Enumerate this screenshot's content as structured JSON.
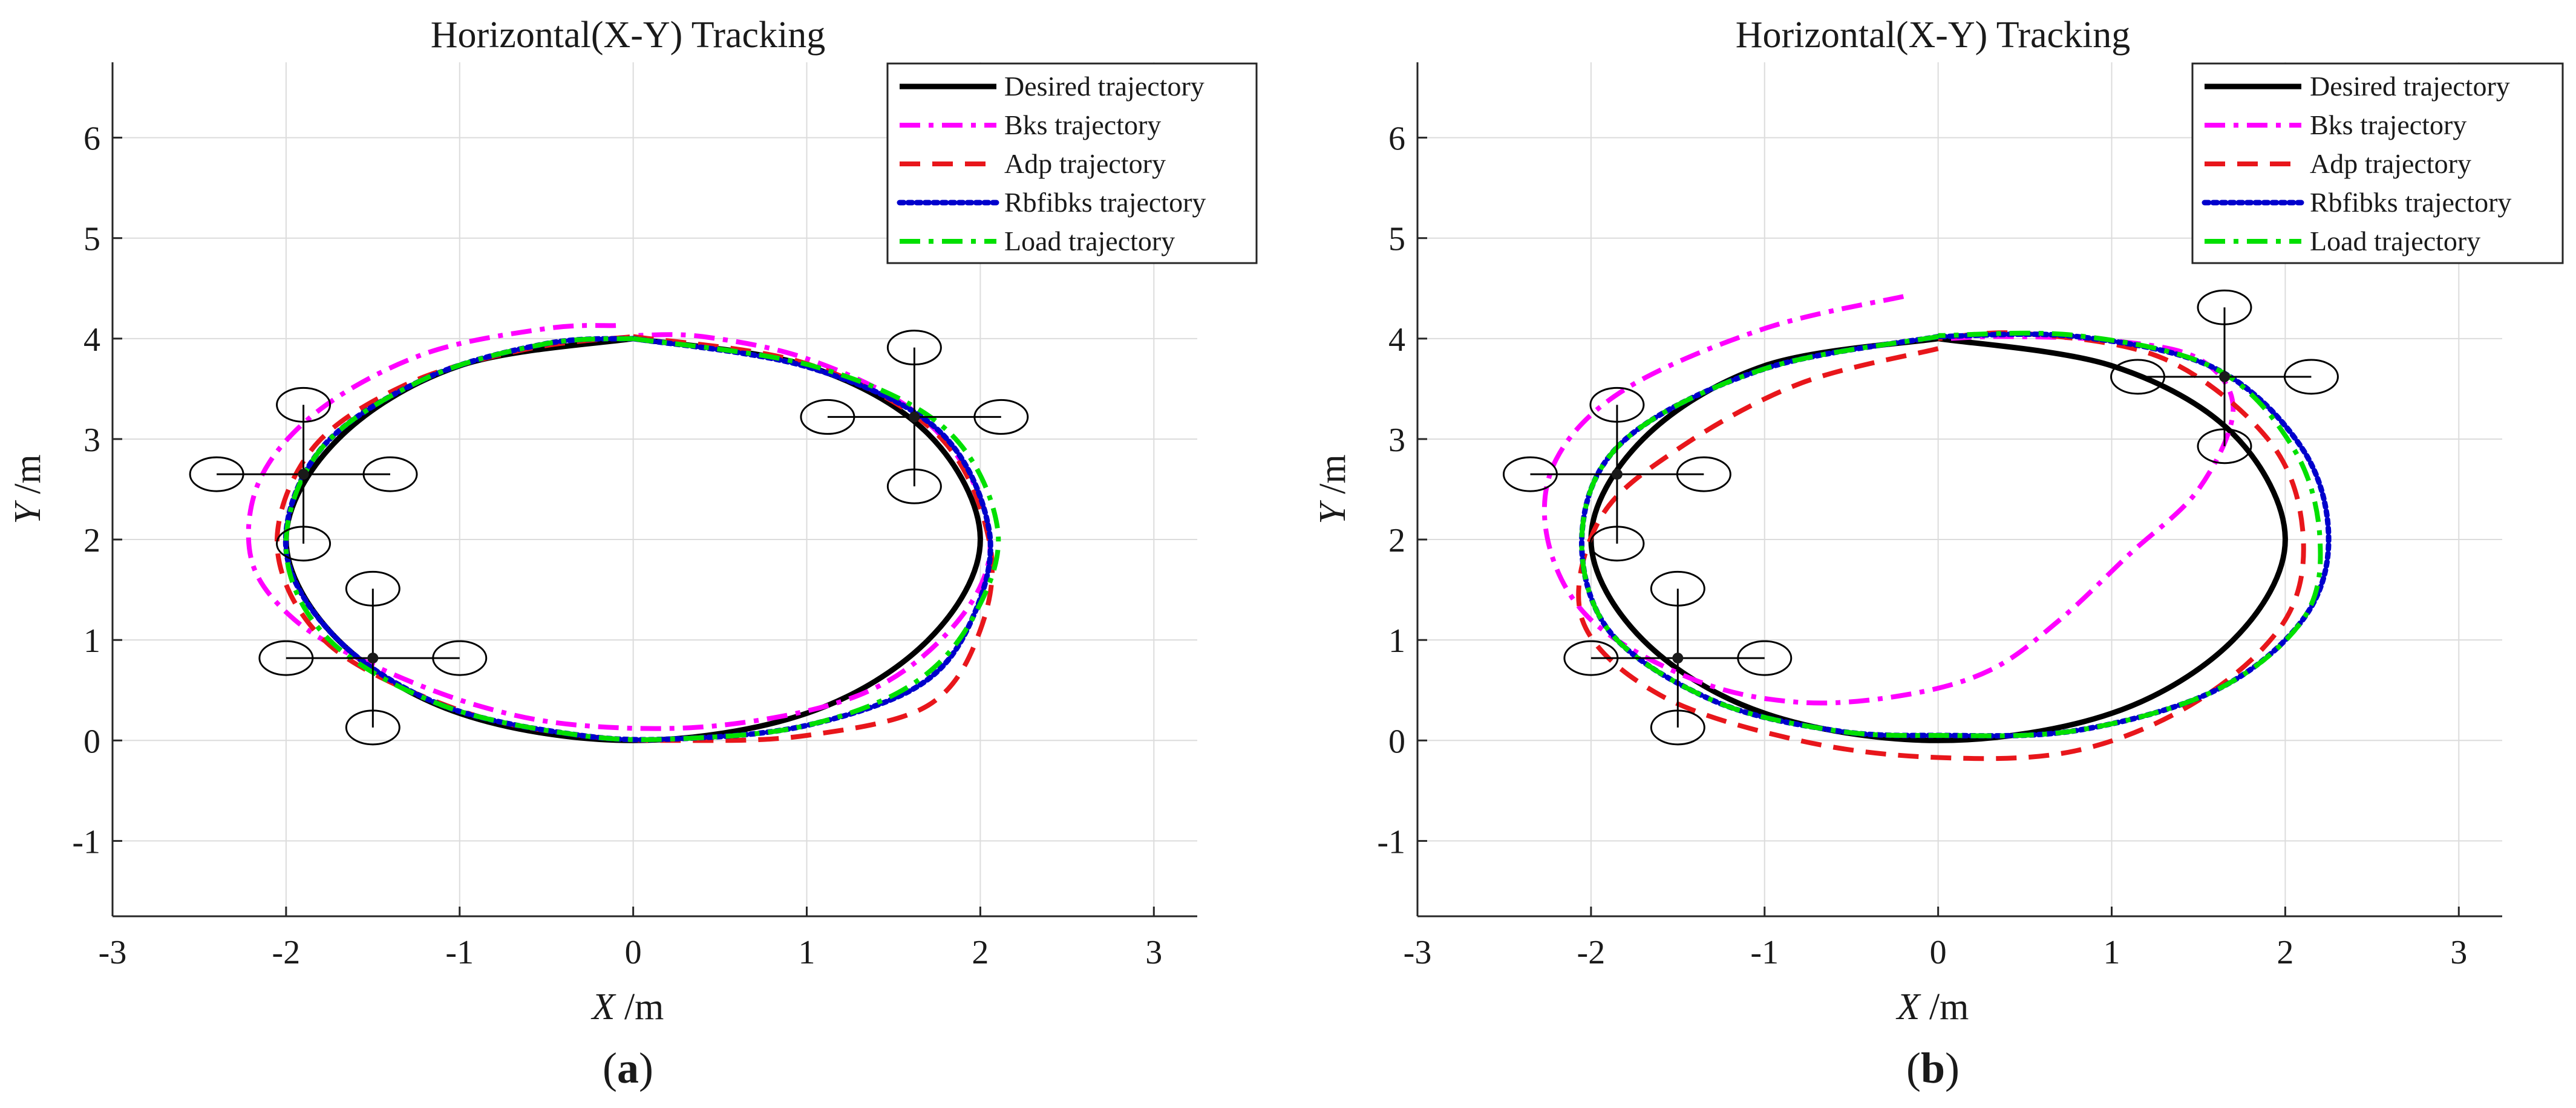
{
  "panels": [
    {
      "id": "a",
      "title": "Horizontal(X-Y) Tracking",
      "xlabel_var": "X",
      "xlabel_unit": " /m",
      "ylabel_var": "Y",
      "ylabel_unit": " /m",
      "panel_label_open": "(",
      "panel_label_letter": "a",
      "panel_label_close": ")"
    },
    {
      "id": "b",
      "title": "Horizontal(X-Y) Tracking",
      "xlabel_var": "X",
      "xlabel_unit": " /m",
      "ylabel_var": "Y",
      "ylabel_unit": " /m",
      "panel_label_open": "(",
      "panel_label_letter": "b",
      "panel_label_close": ")"
    }
  ],
  "legend": [
    {
      "name": "Desired trajectory",
      "color": "#000000",
      "style": "solid"
    },
    {
      "name": "Bks trajectory",
      "color": "#ff00ff",
      "style": "dashdot"
    },
    {
      "name": "Adp trajectory",
      "color": "#e8161b",
      "style": "dashed"
    },
    {
      "name": "Rbfibks trajectory",
      "color": "#0000cc",
      "style": "dotted"
    },
    {
      "name": "Load trajectory",
      "color": "#00e000",
      "style": "dashdot"
    }
  ],
  "chart_data": [
    {
      "type": "line",
      "title": "Horizontal(X-Y) Tracking",
      "xlabel": "X /m",
      "ylabel": "Y /m",
      "xlim": [
        -3,
        3.25
      ],
      "ylim": [
        -1.75,
        6.75
      ],
      "xticks": [
        "-3",
        "-2",
        "-1",
        "0",
        "1",
        "2",
        "3"
      ],
      "yticks": [
        "-1",
        "0",
        "1",
        "2",
        "3",
        "4",
        "5",
        "6"
      ],
      "grid": true,
      "legend_position": "top-right",
      "series": [
        {
          "name": "Desired trajectory",
          "x": [
            0,
            1.0,
            1.7,
            2.0,
            1.7,
            1.0,
            0,
            -1.0,
            -1.7,
            -2.0,
            -1.7,
            -1.0,
            0
          ],
          "y": [
            4.0,
            3.73,
            3.05,
            2.0,
            1.0,
            0.27,
            0.0,
            0.27,
            1.0,
            2.0,
            3.0,
            3.73,
            4.0
          ]
        },
        {
          "name": "Bks trajectory",
          "x": [
            -0.1,
            -0.5,
            -1.2,
            -1.8,
            -2.15,
            -2.2,
            -1.95,
            -1.5,
            -0.9,
            -0.3,
            0.5,
            1.3,
            1.8,
            2.05,
            1.95,
            1.6,
            1.0,
            0.4,
            0
          ],
          "y": [
            4.13,
            4.1,
            3.85,
            3.3,
            2.6,
            1.8,
            1.2,
            0.75,
            0.35,
            0.15,
            0.15,
            0.45,
            1.05,
            1.8,
            2.6,
            3.3,
            3.8,
            4.02,
            4.03
          ]
        },
        {
          "name": "Adp trajectory",
          "x": [
            0,
            1.0,
            1.75,
            2.05,
            2.0,
            1.7,
            1.0,
            0.3,
            -0.3,
            -1.0,
            -1.75,
            -2.05,
            -1.85,
            -1.3,
            -0.6,
            0
          ],
          "y": [
            4.02,
            3.75,
            3.05,
            2.0,
            1.1,
            0.35,
            0.05,
            0.0,
            0.05,
            0.3,
            0.95,
            1.9,
            2.9,
            3.55,
            3.9,
            4.02
          ]
        },
        {
          "name": "Rbfibks trajectory",
          "x": [
            0,
            1.0,
            1.75,
            2.05,
            1.95,
            1.65,
            1.0,
            0.3,
            -0.3,
            -1.1,
            -1.7,
            -2.0,
            -1.8,
            -1.2,
            -0.5,
            0
          ],
          "y": [
            4.0,
            3.72,
            3.1,
            2.1,
            1.2,
            0.55,
            0.15,
            0.02,
            0.05,
            0.35,
            1.0,
            1.9,
            2.9,
            3.6,
            3.95,
            4.0
          ]
        },
        {
          "name": "Load trajectory",
          "x": [
            0,
            1.05,
            1.8,
            2.1,
            1.95,
            1.6,
            1.0,
            0.3,
            -0.3,
            -1.1,
            -1.75,
            -2.0,
            -1.8,
            -1.2,
            -0.5,
            0
          ],
          "y": [
            4.0,
            3.72,
            3.1,
            2.1,
            1.2,
            0.55,
            0.15,
            0.02,
            0.05,
            0.35,
            1.0,
            1.9,
            2.9,
            3.6,
            3.95,
            4.0
          ]
        }
      ]
    },
    {
      "type": "line",
      "title": "Horizontal(X-Y) Tracking",
      "xlabel": "X /m",
      "ylabel": "Y /m",
      "xlim": [
        -3,
        3.25
      ],
      "ylim": [
        -1.75,
        6.75
      ],
      "xticks": [
        "-3",
        "-2",
        "-1",
        "0",
        "1",
        "2",
        "3"
      ],
      "yticks": [
        "-1",
        "0",
        "1",
        "2",
        "3",
        "4",
        "5",
        "6"
      ],
      "grid": true,
      "legend_position": "top-right",
      "series": [
        {
          "name": "Desired trajectory",
          "x": [
            0,
            1.0,
            1.7,
            2.0,
            1.7,
            1.0,
            0,
            -1.0,
            -1.7,
            -2.0,
            -1.7,
            -1.0,
            0
          ],
          "y": [
            4.0,
            3.73,
            3.05,
            2.0,
            1.0,
            0.27,
            0.0,
            0.27,
            1.0,
            2.0,
            3.0,
            3.73,
            4.0
          ]
        },
        {
          "name": "Bks trajectory",
          "x": [
            -0.2,
            -1.0,
            -1.8,
            -2.2,
            -2.25,
            -2.0,
            -1.4,
            -0.8,
            -0.2,
            0.3,
            0.7,
            1.1,
            1.5,
            1.7,
            1.5,
            1.0,
            0.4,
            0.05
          ],
          "y": [
            4.42,
            4.1,
            3.5,
            2.8,
            2.0,
            1.2,
            0.6,
            0.38,
            0.45,
            0.7,
            1.2,
            1.85,
            2.5,
            3.3,
            3.8,
            3.98,
            4.02,
            4.0
          ]
        },
        {
          "name": "Adp trajectory",
          "x": [
            0,
            -0.8,
            -1.5,
            -1.95,
            -2.05,
            -1.6,
            -0.8,
            0,
            0.8,
            1.5,
            2.0,
            2.1,
            1.9,
            1.3,
            0.5,
            0
          ],
          "y": [
            3.9,
            3.55,
            2.9,
            2.2,
            1.2,
            0.45,
            0.0,
            -0.17,
            -0.1,
            0.4,
            1.2,
            2.1,
            3.0,
            3.8,
            4.05,
            4.0
          ]
        },
        {
          "name": "Rbfibks trajectory",
          "x": [
            0,
            -1.0,
            -1.8,
            -2.05,
            -1.9,
            -1.3,
            -0.6,
            0,
            0.8,
            1.6,
            2.1,
            2.25,
            2.1,
            1.6,
            0.8,
            0
          ],
          "y": [
            4.02,
            3.7,
            3.0,
            2.1,
            1.1,
            0.4,
            0.1,
            0.05,
            0.1,
            0.5,
            1.2,
            2.0,
            2.9,
            3.7,
            4.02,
            4.02
          ]
        },
        {
          "name": "Load trajectory",
          "x": [
            0,
            -1.0,
            -1.8,
            -2.05,
            -1.9,
            -1.3,
            -0.6,
            0,
            0.8,
            1.6,
            2.1,
            2.2,
            2.05,
            1.6,
            0.8,
            0
          ],
          "y": [
            4.02,
            3.7,
            3.0,
            2.1,
            1.1,
            0.4,
            0.1,
            0.05,
            0.1,
            0.5,
            1.2,
            2.0,
            2.9,
            3.7,
            4.03,
            4.03
          ]
        }
      ]
    }
  ]
}
